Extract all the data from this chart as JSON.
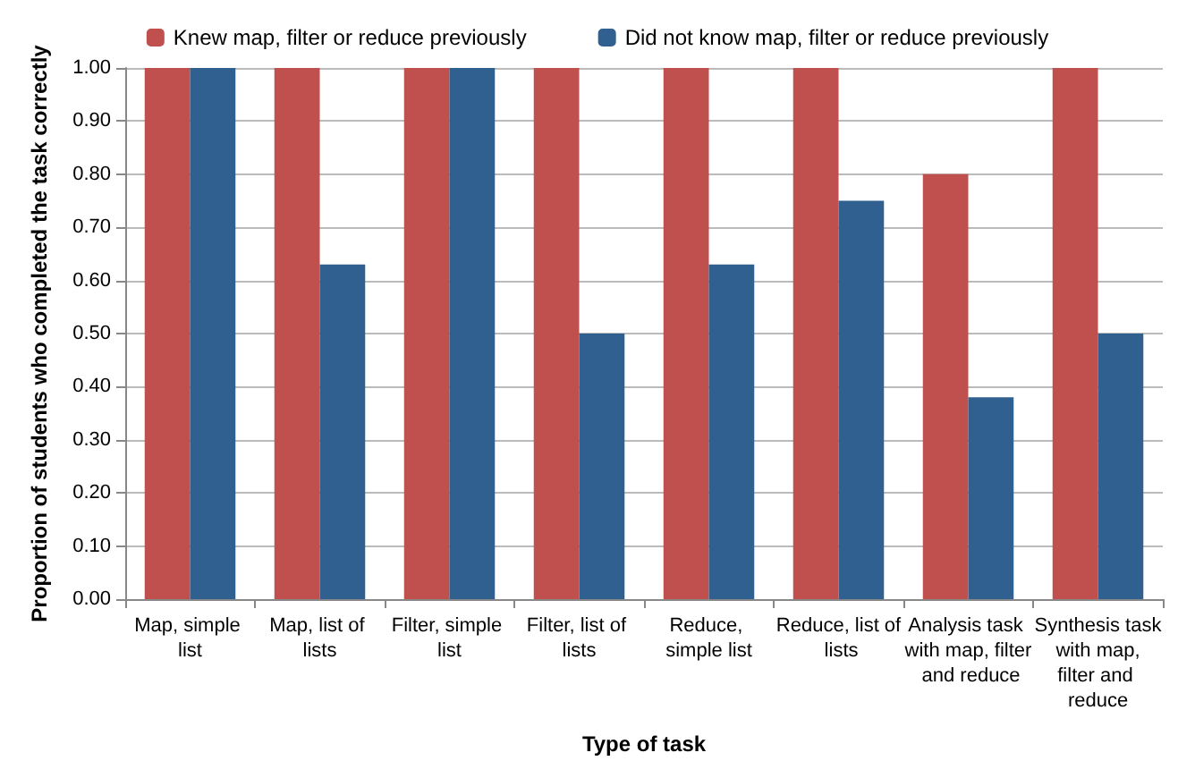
{
  "chart_data": {
    "type": "bar",
    "xlabel": "Type of task",
    "ylabel": "Proportion of students who completed the task correctly",
    "categories": [
      "Map, simple list",
      "Map, list of lists",
      "Filter, simple list",
      "Filter, list of lists",
      "Reduce, simple list",
      "Reduce, list of lists",
      "Analysis task with map, filter and reduce",
      "Synthesis task with map, filter and reduce"
    ],
    "series": [
      {
        "name": "Knew map, filter or reduce previously",
        "color": "#c0504d",
        "values": [
          1.0,
          1.0,
          1.0,
          1.0,
          1.0,
          1.0,
          0.8,
          1.0
        ]
      },
      {
        "name": "Did not know map, filter or reduce previously",
        "color": "#30608f",
        "values": [
          1.0,
          0.63,
          1.0,
          0.5,
          0.63,
          0.75,
          0.38,
          0.5
        ]
      }
    ],
    "ylim": [
      0,
      1
    ],
    "yticks": [
      {
        "value": 0,
        "label": "0.00"
      },
      {
        "value": 0.1,
        "label": "0.10"
      },
      {
        "value": 0.2,
        "label": "0.20"
      },
      {
        "value": 0.3,
        "label": "0.30"
      },
      {
        "value": 0.4,
        "label": "0.40"
      },
      {
        "value": 0.5,
        "label": "0.50"
      },
      {
        "value": 0.6,
        "label": "0.60"
      },
      {
        "value": 0.7,
        "label": "0.70"
      },
      {
        "value": 0.8,
        "label": "0.80"
      },
      {
        "value": 0.9,
        "label": "0.90"
      },
      {
        "value": 1,
        "label": "1.00"
      }
    ],
    "grid": "y",
    "legend": "top"
  }
}
